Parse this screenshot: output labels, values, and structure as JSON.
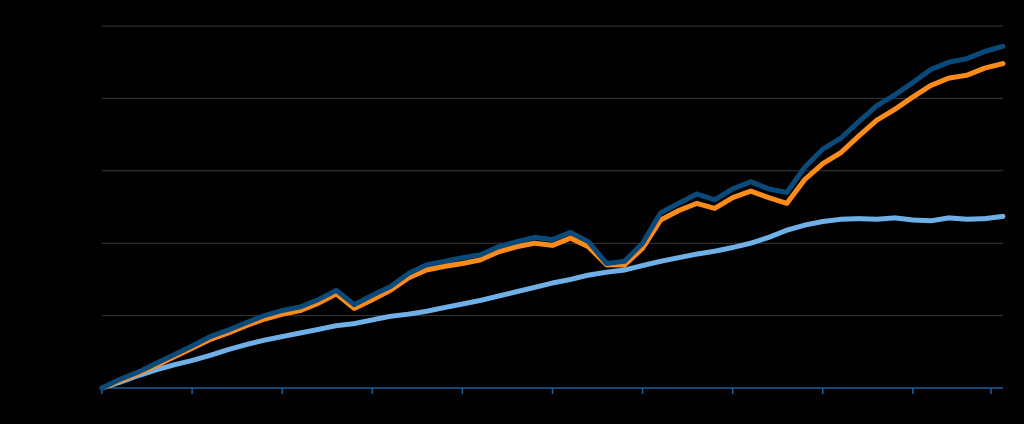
{
  "chart_data": {
    "type": "line",
    "title": "",
    "xlabel": "",
    "ylabel": "",
    "x": [
      0,
      2,
      4,
      6,
      8,
      10,
      12,
      14,
      16,
      18,
      20,
      22,
      24,
      26,
      28,
      30,
      32,
      34,
      36,
      38,
      40,
      42,
      44,
      46,
      48,
      50,
      52,
      54,
      56,
      58,
      60,
      62,
      64,
      66,
      68,
      70,
      72,
      74,
      76,
      78,
      80,
      82,
      84,
      86,
      88,
      90,
      92,
      94,
      96,
      98,
      100
    ],
    "xlim": [
      0,
      100
    ],
    "ylim": [
      0,
      5
    ],
    "grid": true,
    "legend": "none",
    "series": [
      {
        "color": "#0a4a7a",
        "values": [
          0.0,
          0.12,
          0.22,
          0.34,
          0.46,
          0.58,
          0.71,
          0.8,
          0.9,
          1.0,
          1.07,
          1.12,
          1.22,
          1.35,
          1.15,
          1.28,
          1.4,
          1.58,
          1.7,
          1.75,
          1.8,
          1.84,
          1.95,
          2.02,
          2.08,
          2.05,
          2.15,
          2.02,
          1.72,
          1.75,
          2.0,
          2.42,
          2.55,
          2.68,
          2.6,
          2.75,
          2.85,
          2.75,
          2.7,
          3.05,
          3.3,
          3.45,
          3.68,
          3.9,
          4.05,
          4.22,
          4.4,
          4.5,
          4.55,
          4.65,
          4.72
        ]
      },
      {
        "color": "#ff8c1a",
        "values": [
          0.0,
          0.1,
          0.2,
          0.31,
          0.43,
          0.55,
          0.67,
          0.76,
          0.86,
          0.95,
          1.02,
          1.07,
          1.17,
          1.3,
          1.1,
          1.22,
          1.35,
          1.52,
          1.63,
          1.68,
          1.72,
          1.77,
          1.88,
          1.95,
          2.0,
          1.97,
          2.07,
          1.95,
          1.7,
          1.7,
          1.93,
          2.32,
          2.45,
          2.55,
          2.48,
          2.63,
          2.72,
          2.63,
          2.55,
          2.88,
          3.1,
          3.25,
          3.48,
          3.7,
          3.85,
          4.02,
          4.18,
          4.28,
          4.32,
          4.42,
          4.48
        ]
      },
      {
        "color": "#6fb0e8",
        "values": [
          0.0,
          0.08,
          0.17,
          0.25,
          0.32,
          0.38,
          0.45,
          0.53,
          0.6,
          0.66,
          0.71,
          0.76,
          0.81,
          0.86,
          0.89,
          0.94,
          0.99,
          1.02,
          1.06,
          1.11,
          1.16,
          1.21,
          1.27,
          1.33,
          1.39,
          1.45,
          1.5,
          1.56,
          1.6,
          1.63,
          1.69,
          1.75,
          1.8,
          1.85,
          1.89,
          1.94,
          2.0,
          2.08,
          2.18,
          2.25,
          2.3,
          2.33,
          2.34,
          2.33,
          2.35,
          2.32,
          2.31,
          2.35,
          2.33,
          2.34,
          2.37
        ]
      }
    ]
  }
}
